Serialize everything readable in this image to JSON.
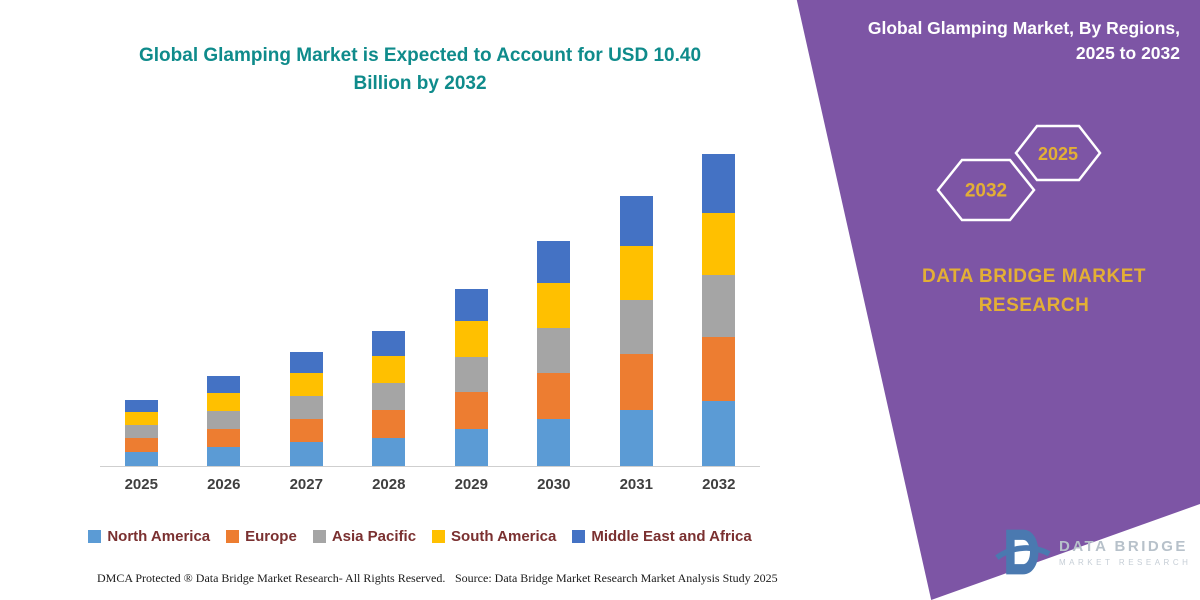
{
  "left": {
    "title": "Global Glamping Market is Expected to Account for USD 10.40 Billion by 2032",
    "footer_dmca": "DMCA Protected ® Data Bridge Market Research-  All Rights Reserved.",
    "footer_source": "Source: Data Bridge Market Research  Market Analysis Study 2025"
  },
  "right_panel": {
    "heading": "Global Glamping Market, By Regions, 2025 to 2032",
    "hex_back_label": "2032",
    "hex_front_label": "2025",
    "brand": "DATA BRIDGE MARKET RESEARCH",
    "panel_color": "#7d55a5",
    "accent_color": "#e3af35"
  },
  "logo": {
    "text_top": "DATA BRIDGE",
    "text_bottom": "MARKET RESEARCH"
  },
  "chart_data": {
    "type": "bar",
    "stacked": true,
    "title": "Global Glamping Market is Expected to Account for USD 10.40 Billion by 2032",
    "unit": "USD Billion",
    "grid": false,
    "legend_position": "bottom",
    "ylim": [
      0,
      10.4
    ],
    "categories": [
      "2025",
      "2026",
      "2027",
      "2028",
      "2029",
      "2030",
      "2031",
      "2032"
    ],
    "series": [
      {
        "name": "North America",
        "color": "#5B9BD5",
        "values": [
          0.46,
          0.62,
          0.8,
          0.94,
          1.24,
          1.56,
          1.88,
          2.16
        ]
      },
      {
        "name": "Europe",
        "color": "#ED7D31",
        "values": [
          0.46,
          0.62,
          0.78,
          0.92,
          1.22,
          1.54,
          1.84,
          2.14
        ]
      },
      {
        "name": "Asia Pacific",
        "color": "#A5A5A5",
        "values": [
          0.44,
          0.6,
          0.76,
          0.9,
          1.18,
          1.5,
          1.8,
          2.06
        ]
      },
      {
        "name": "South America",
        "color": "#FFC000",
        "values": [
          0.44,
          0.6,
          0.76,
          0.9,
          1.18,
          1.5,
          1.8,
          2.08
        ]
      },
      {
        "name": "Middle East and Africa",
        "color": "#4472C4",
        "values": [
          0.4,
          0.56,
          0.7,
          0.84,
          1.08,
          1.4,
          1.68,
          1.96
        ]
      }
    ],
    "totals": [
      2.2,
      3.0,
      3.8,
      4.5,
      5.9,
      7.5,
      9.0,
      10.4
    ]
  }
}
